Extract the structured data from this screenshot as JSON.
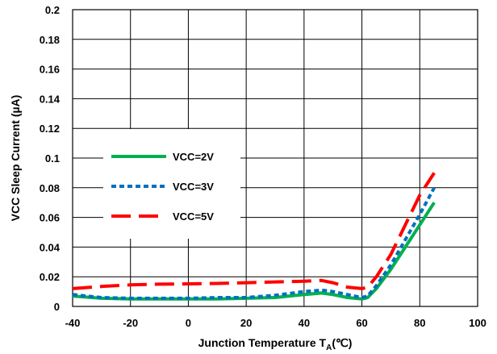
{
  "chart_data": {
    "type": "line",
    "title": "",
    "xlabel": "Junction Temperature T",
    "xlabel_sub": "A",
    "xlabel_suffix": "(℃)",
    "ylabel": "VCC Sleep Current (µA)",
    "xlim": [
      -40,
      100
    ],
    "ylim": [
      0,
      0.2
    ],
    "x_ticks": [
      "-40",
      "-20",
      "0",
      "20",
      "40",
      "60",
      "80",
      "100"
    ],
    "y_ticks": [
      "0",
      "0.02",
      "0.04",
      "0.06",
      "0.08",
      "0.1",
      "0.12",
      "0.14",
      "0.16",
      "0.18",
      "0.2"
    ],
    "grid": true,
    "legend_position": "center-left",
    "series": [
      {
        "name": "VCC=2V",
        "color": "#00B050",
        "style": "solid",
        "x": [
          -40,
          -30,
          -20,
          -10,
          0,
          10,
          20,
          30,
          40,
          46,
          50,
          55,
          60,
          62,
          65,
          70,
          75,
          80,
          85
        ],
        "y": [
          0.007,
          0.0055,
          0.005,
          0.005,
          0.005,
          0.005,
          0.0055,
          0.006,
          0.008,
          0.009,
          0.008,
          0.006,
          0.005,
          0.006,
          0.012,
          0.025,
          0.04,
          0.055,
          0.07
        ]
      },
      {
        "name": "VCC=3V",
        "color": "#0070C0",
        "style": "dotted",
        "x": [
          -40,
          -30,
          -20,
          -10,
          0,
          10,
          20,
          30,
          40,
          46,
          50,
          55,
          60,
          62,
          65,
          70,
          75,
          80,
          85
        ],
        "y": [
          0.008,
          0.006,
          0.0055,
          0.0055,
          0.0055,
          0.006,
          0.006,
          0.0075,
          0.01,
          0.011,
          0.01,
          0.008,
          0.006,
          0.007,
          0.014,
          0.028,
          0.045,
          0.062,
          0.08
        ]
      },
      {
        "name": "VCC=5V",
        "color": "#FF0000",
        "style": "dashed",
        "x": [
          -40,
          -30,
          -20,
          -10,
          0,
          10,
          20,
          30,
          40,
          46,
          50,
          55,
          60,
          62,
          65,
          70,
          75,
          80,
          85
        ],
        "y": [
          0.012,
          0.0135,
          0.0145,
          0.015,
          0.0152,
          0.0155,
          0.016,
          0.0165,
          0.017,
          0.0175,
          0.016,
          0.013,
          0.012,
          0.013,
          0.02,
          0.035,
          0.055,
          0.075,
          0.09
        ]
      }
    ]
  }
}
